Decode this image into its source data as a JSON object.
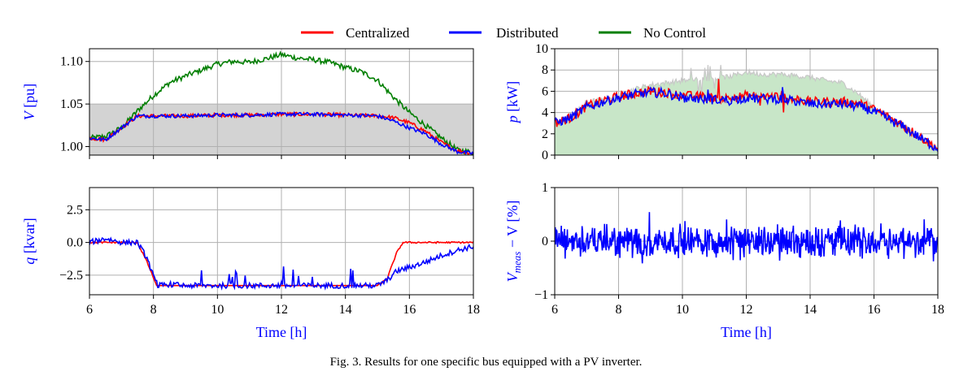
{
  "legend": [
    {
      "name": "Centralized",
      "color": "#ff0000"
    },
    {
      "name": "Distributed",
      "color": "#0000ff"
    },
    {
      "name": "No Control",
      "color": "#007f00"
    }
  ],
  "caption": "Fig. 3.  Results for one specific bus equipped with a PV inverter.",
  "colors": {
    "centralized": "#ff0000",
    "distributed": "#0000ff",
    "no_control": "#007f00",
    "voltage_band": "#d3d3d3",
    "pv_available": "#c8c8c8",
    "pv_fill": "#c8e6c8"
  },
  "chart_data": [
    {
      "id": "voltage",
      "type": "line",
      "xlabel": "",
      "ylabel": "V [pu]",
      "xlim": [
        6,
        18
      ],
      "ylim": [
        0.99,
        1.115
      ],
      "xticks": [
        6,
        8,
        10,
        12,
        14,
        16,
        18
      ],
      "yticks": [
        "1.00",
        "1.05",
        "1.10"
      ],
      "band": [
        0.99,
        1.05
      ],
      "series": [
        {
          "name": "No Control",
          "x": [
            6,
            6.5,
            7,
            7.5,
            8,
            8.5,
            9,
            9.5,
            10,
            10.5,
            11,
            11.5,
            12,
            12.5,
            13,
            13.5,
            14,
            14.5,
            15,
            15.5,
            16,
            16.5,
            17,
            17.5,
            18
          ],
          "y": [
            1.01,
            1.012,
            1.022,
            1.042,
            1.06,
            1.075,
            1.083,
            1.09,
            1.097,
            1.1,
            1.099,
            1.103,
            1.108,
            1.104,
            1.102,
            1.099,
            1.093,
            1.088,
            1.078,
            1.058,
            1.04,
            1.025,
            1.01,
            0.996,
            0.993
          ]
        },
        {
          "name": "Centralized",
          "x": [
            6,
            6.5,
            7,
            7.5,
            8,
            9,
            10,
            11,
            12,
            13,
            14,
            15,
            15.5,
            16,
            16.5,
            17,
            17.5,
            18
          ],
          "y": [
            1.01,
            1.008,
            1.022,
            1.036,
            1.036,
            1.036,
            1.037,
            1.037,
            1.038,
            1.038,
            1.037,
            1.036,
            1.034,
            1.028,
            1.018,
            1.005,
            0.995,
            0.992
          ]
        },
        {
          "name": "Distributed",
          "x": [
            6,
            6.5,
            7,
            7.5,
            8,
            9,
            10,
            11,
            12,
            13,
            14,
            15,
            15.5,
            16,
            16.5,
            17,
            17.5,
            18
          ],
          "y": [
            1.01,
            1.008,
            1.022,
            1.036,
            1.036,
            1.036,
            1.037,
            1.037,
            1.038,
            1.038,
            1.037,
            1.036,
            1.03,
            1.022,
            1.015,
            1.003,
            0.994,
            0.992
          ]
        }
      ]
    },
    {
      "id": "active_power",
      "type": "line",
      "xlabel": "",
      "ylabel": "p [kW]",
      "xlim": [
        6,
        18
      ],
      "ylim": [
        0,
        10
      ],
      "xticks": [
        6,
        8,
        10,
        12,
        14,
        16,
        18
      ],
      "yticks": [
        "0",
        "2",
        "4",
        "6",
        "8",
        "10"
      ],
      "series": [
        {
          "name": "Available PV",
          "x": [
            6,
            6.5,
            7,
            7.5,
            8,
            8.5,
            9,
            9.5,
            10,
            10.5,
            11,
            11.5,
            12,
            12.5,
            13,
            13.5,
            14,
            14.5,
            15,
            15.5,
            16,
            16.5,
            17,
            17.5,
            18
          ],
          "y": [
            3.0,
            3.5,
            5.0,
            5.2,
            5.6,
            6.2,
            6.6,
            6.8,
            7.0,
            7.2,
            7.2,
            7.4,
            7.8,
            7.6,
            7.6,
            7.5,
            7.3,
            7.0,
            6.8,
            5.8,
            4.5,
            3.5,
            2.6,
            1.6,
            0.6
          ]
        },
        {
          "name": "Centralized",
          "x": [
            6,
            6.5,
            7,
            7.5,
            8,
            8.5,
            9,
            9.5,
            10,
            10.5,
            11,
            11.5,
            12,
            12.5,
            13,
            13.5,
            14,
            14.5,
            15,
            15.5,
            16,
            16.5,
            17,
            17.5,
            18
          ],
          "y": [
            3.0,
            3.5,
            4.6,
            5.1,
            5.5,
            5.8,
            6.0,
            5.9,
            5.6,
            5.5,
            5.4,
            5.3,
            5.6,
            5.5,
            5.5,
            5.3,
            5.0,
            5.0,
            5.0,
            4.9,
            4.3,
            3.5,
            2.6,
            1.6,
            0.6
          ]
        },
        {
          "name": "Distributed",
          "x": [
            6,
            6.5,
            7,
            7.5,
            8,
            8.5,
            9,
            9.5,
            10,
            10.5,
            11,
            11.5,
            12,
            12.5,
            13,
            13.5,
            14,
            14.5,
            15,
            15.5,
            16,
            16.5,
            17,
            17.5,
            18
          ],
          "y": [
            3.0,
            3.5,
            4.5,
            5.0,
            5.4,
            5.7,
            5.9,
            5.8,
            5.4,
            5.3,
            5.2,
            5.2,
            5.4,
            5.3,
            5.3,
            5.1,
            4.8,
            4.8,
            4.8,
            4.6,
            4.1,
            3.3,
            2.5,
            1.5,
            0.6
          ]
        }
      ]
    },
    {
      "id": "reactive_power",
      "type": "line",
      "xlabel": "Time [h]",
      "ylabel": "q [kvar]",
      "xlim": [
        6,
        18
      ],
      "ylim": [
        -4,
        4.2
      ],
      "xticks": [
        6,
        8,
        10,
        12,
        14,
        16,
        18
      ],
      "yticks": [
        "2.5",
        "0.0",
        "−2.5"
      ],
      "series": [
        {
          "name": "Centralized",
          "x": [
            6,
            6.5,
            7,
            7.5,
            7.8,
            8.1,
            8.5,
            9,
            10,
            11,
            12,
            13,
            14,
            15,
            15.3,
            15.6,
            15.8,
            16,
            16.5,
            17,
            17.5,
            18
          ],
          "y": [
            0.0,
            0.0,
            0.0,
            0.0,
            -1.5,
            -3.3,
            -3.3,
            -3.3,
            -3.3,
            -3.3,
            -3.3,
            -3.3,
            -3.3,
            -3.3,
            -2.8,
            -0.8,
            0.0,
            0.0,
            0.0,
            0.0,
            0.0,
            0.0
          ]
        },
        {
          "name": "Distributed",
          "x": [
            6,
            6.5,
            7,
            7.5,
            7.8,
            8.1,
            8.5,
            9,
            10,
            11,
            12,
            13,
            14,
            15,
            15.3,
            15.6,
            16,
            16.5,
            17,
            17.5,
            18
          ],
          "y": [
            0.0,
            0.3,
            0.0,
            0.0,
            -1.2,
            -3.3,
            -3.2,
            -3.3,
            -3.3,
            -3.3,
            -3.3,
            -3.3,
            -3.3,
            -3.3,
            -2.9,
            -2.2,
            -1.9,
            -1.5,
            -1.0,
            -0.6,
            -0.3
          ]
        }
      ]
    },
    {
      "id": "measurement_error",
      "type": "line",
      "xlabel": "Time [h]",
      "ylabel": "V_meas − V [%]",
      "ylabel_parts": {
        "v": "V",
        "sub": "meas",
        "rest": " − V [%]"
      },
      "xlim": [
        6,
        18
      ],
      "ylim": [
        -1,
        1
      ],
      "xticks": [
        6,
        8,
        10,
        12,
        14,
        16,
        18
      ],
      "yticks": [
        "1",
        "0",
        "−1"
      ],
      "series": [
        {
          "name": "Distributed",
          "x": [
            6,
            18
          ],
          "y": [
            0,
            0
          ],
          "noise_amplitude": 0.35
        }
      ]
    }
  ]
}
